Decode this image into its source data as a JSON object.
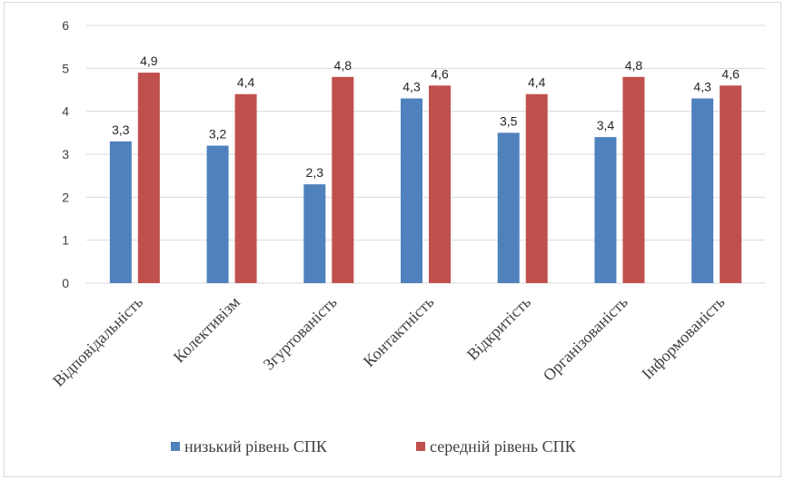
{
  "chart_data": {
    "type": "bar",
    "title": "",
    "xlabel": "",
    "ylabel": "",
    "ylim": [
      0,
      6
    ],
    "yticks": [
      "0",
      "1",
      "2",
      "3",
      "4",
      "5",
      "6"
    ],
    "grid": true,
    "legend_position": "bottom",
    "categories": [
      "Відповідальність",
      "Колективізм",
      "Згуртованість",
      "Контактність",
      "Відкритість",
      "Організованість",
      "Інформованість"
    ],
    "series": [
      {
        "name": "низький рівень СПК",
        "color": "#4f81bd",
        "values": [
          3.3,
          3.2,
          2.3,
          4.3,
          3.5,
          3.4,
          4.3
        ],
        "labels": [
          "3,3",
          "3,2",
          "2,3",
          "4,3",
          "3,5",
          "3,4",
          "4,3"
        ]
      },
      {
        "name": "середній рівень СПК",
        "color": "#c0504d",
        "values": [
          4.9,
          4.4,
          4.8,
          4.6,
          4.4,
          4.8,
          4.6
        ],
        "labels": [
          "4,9",
          "4,4",
          "4,8",
          "4,6",
          "4,4",
          "4,8",
          "4,6"
        ]
      }
    ]
  }
}
